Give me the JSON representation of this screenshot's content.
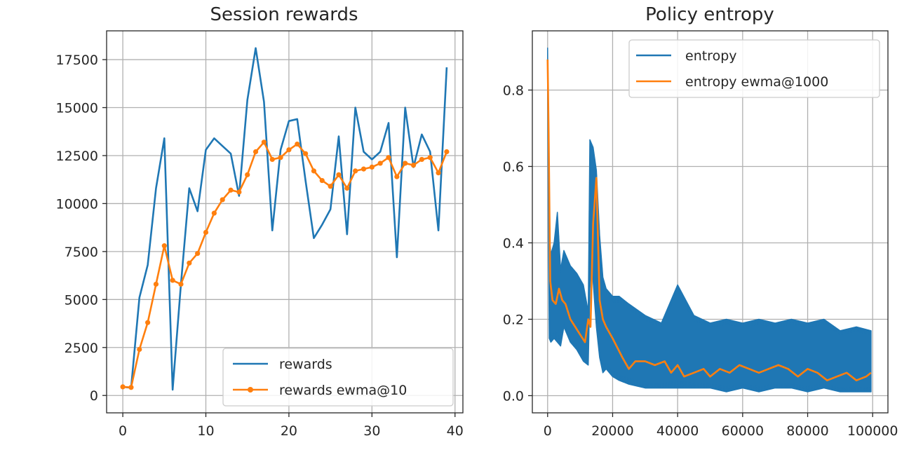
{
  "chart_data": [
    {
      "type": "line",
      "title": "Session rewards",
      "xlabel": "",
      "ylabel": "",
      "xlim": [
        -1.95,
        40.95
      ],
      "ylim": [
        -905,
        19000
      ],
      "xticks": [
        0,
        10,
        20,
        30,
        40
      ],
      "xtick_labels": [
        "0",
        "10",
        "20",
        "30",
        "40"
      ],
      "yticks": [
        0,
        2500,
        5000,
        7500,
        10000,
        12500,
        15000,
        17500
      ],
      "ytick_labels": [
        "0",
        "2500",
        "5000",
        "7500",
        "10000",
        "12500",
        "15000",
        "17500"
      ],
      "grid": true,
      "legend_position": "lower right",
      "series": [
        {
          "name": "rewards",
          "color": "#1f77b4",
          "marker": "none",
          "x": [
            0,
            1,
            2,
            3,
            4,
            5,
            6,
            7,
            8,
            9,
            10,
            11,
            12,
            13,
            14,
            15,
            16,
            17,
            18,
            19,
            20,
            21,
            22,
            23,
            24,
            25,
            26,
            27,
            28,
            29,
            30,
            31,
            32,
            33,
            34,
            35,
            36,
            37,
            38,
            39
          ],
          "values": [
            450,
            400,
            5100,
            6800,
            10800,
            13400,
            300,
            5800,
            10800,
            9600,
            12800,
            13400,
            13000,
            12600,
            10400,
            15400,
            18100,
            15300,
            8600,
            12800,
            14300,
            14400,
            11200,
            8200,
            8900,
            9700,
            13500,
            8400,
            15000,
            12700,
            12300,
            12700,
            14200,
            7200,
            15000,
            11900,
            13600,
            12700,
            8600,
            17100
          ]
        },
        {
          "name": "rewards ewma@10",
          "color": "#ff7f0e",
          "marker": "circle",
          "x": [
            0,
            1,
            2,
            3,
            4,
            5,
            6,
            7,
            8,
            9,
            10,
            11,
            12,
            13,
            14,
            15,
            16,
            17,
            18,
            19,
            20,
            21,
            22,
            23,
            24,
            25,
            26,
            27,
            28,
            29,
            30,
            31,
            32,
            33,
            34,
            35,
            36,
            37,
            38,
            39
          ],
          "values": [
            450,
            420,
            2400,
            3800,
            5800,
            7800,
            6000,
            5800,
            6900,
            7400,
            8500,
            9500,
            10200,
            10700,
            10600,
            11500,
            12700,
            13200,
            12300,
            12400,
            12800,
            13100,
            12600,
            11700,
            11200,
            10900,
            11500,
            10800,
            11700,
            11800,
            11900,
            12100,
            12400,
            11400,
            12100,
            12000,
            12300,
            12400,
            11600,
            12700
          ]
        }
      ]
    },
    {
      "type": "line",
      "title": "Policy entropy",
      "xlabel": "",
      "ylabel": "",
      "xlim": [
        -4700,
        104700
      ],
      "ylim": [
        -0.045,
        0.955
      ],
      "xticks": [
        0,
        20000,
        40000,
        60000,
        80000,
        100000
      ],
      "xtick_labels": [
        "0",
        "20000",
        "40000",
        "60000",
        "80000",
        "100000"
      ],
      "yticks": [
        0.0,
        0.2,
        0.4,
        0.6,
        0.8
      ],
      "ytick_labels": [
        "0.0",
        "0.2",
        "0.4",
        "0.6",
        "0.8"
      ],
      "grid": true,
      "legend_position": "upper right",
      "series": [
        {
          "name": "entropy",
          "color": "#1f77b4",
          "style": "noisy band (envelope)",
          "x": [
            0,
            500,
            1000,
            2000,
            3000,
            4000,
            5000,
            7000,
            9000,
            11000,
            12500,
            13000,
            13500,
            14000,
            15000,
            16000,
            17000,
            18000,
            20000,
            22000,
            25000,
            30000,
            35000,
            40000,
            45000,
            50000,
            55000,
            60000,
            65000,
            70000,
            75000,
            80000,
            85000,
            90000,
            95000,
            99500
          ],
          "y_low": [
            0.78,
            0.15,
            0.14,
            0.15,
            0.14,
            0.13,
            0.18,
            0.14,
            0.12,
            0.09,
            0.08,
            0.28,
            0.35,
            0.3,
            0.18,
            0.1,
            0.06,
            0.07,
            0.05,
            0.04,
            0.03,
            0.02,
            0.02,
            0.02,
            0.02,
            0.02,
            0.01,
            0.02,
            0.01,
            0.02,
            0.02,
            0.01,
            0.02,
            0.01,
            0.01,
            0.01
          ],
          "y_high": [
            0.91,
            0.42,
            0.37,
            0.4,
            0.48,
            0.33,
            0.38,
            0.34,
            0.32,
            0.29,
            0.22,
            0.67,
            0.66,
            0.65,
            0.59,
            0.42,
            0.31,
            0.28,
            0.26,
            0.26,
            0.24,
            0.21,
            0.19,
            0.29,
            0.21,
            0.19,
            0.2,
            0.19,
            0.2,
            0.19,
            0.2,
            0.19,
            0.2,
            0.17,
            0.18,
            0.17
          ]
        },
        {
          "name": "entropy ewma@1000",
          "color": "#ff7f0e",
          "x": [
            0,
            300,
            800,
            1500,
            2500,
            3500,
            4500,
            5500,
            7000,
            8500,
            10000,
            11500,
            12500,
            13200,
            14000,
            15000,
            16000,
            17000,
            18000,
            20000,
            23000,
            25000,
            27000,
            30000,
            33000,
            36000,
            38000,
            40000,
            42000,
            45000,
            48000,
            50000,
            53000,
            56000,
            59000,
            62000,
            65000,
            68000,
            71000,
            74000,
            77000,
            80000,
            83000,
            86000,
            89000,
            92000,
            95000,
            98000,
            99500
          ],
          "values": [
            0.88,
            0.7,
            0.3,
            0.25,
            0.24,
            0.28,
            0.25,
            0.24,
            0.2,
            0.18,
            0.16,
            0.14,
            0.2,
            0.18,
            0.45,
            0.57,
            0.25,
            0.2,
            0.18,
            0.15,
            0.1,
            0.07,
            0.09,
            0.09,
            0.08,
            0.09,
            0.06,
            0.08,
            0.05,
            0.06,
            0.07,
            0.05,
            0.07,
            0.06,
            0.08,
            0.07,
            0.06,
            0.07,
            0.08,
            0.07,
            0.05,
            0.07,
            0.06,
            0.04,
            0.05,
            0.06,
            0.04,
            0.05,
            0.06
          ]
        }
      ]
    }
  ]
}
